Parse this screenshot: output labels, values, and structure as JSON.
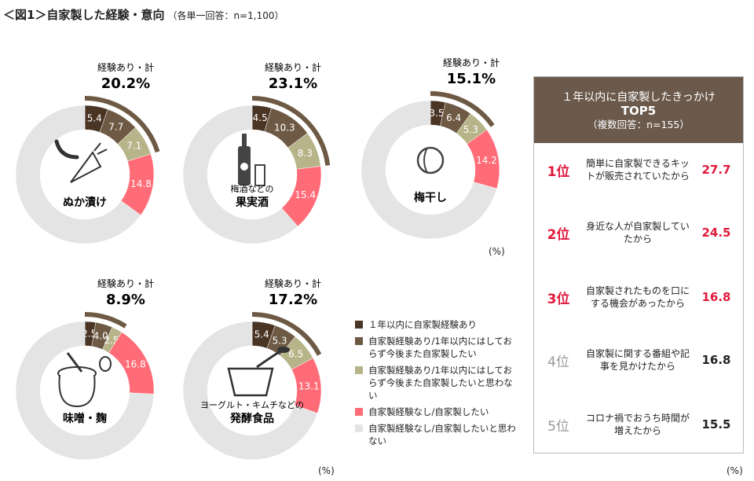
{
  "title": "＜図1＞自家製した経験・意向",
  "subtitle": "（各単一回答：n=1,100）",
  "colors": {
    "c1": "#4a3424",
    "c2": "#6e5a44",
    "c3": "#b8b48a",
    "c4": "#ff6b77",
    "c5": "#e4e4e4",
    "bracket": "#6e5a44",
    "rank_red": "#e1193c",
    "rank_gray": "#999999"
  },
  "chart_data": {
    "type": "pie",
    "variant": "donut",
    "series_labels": [
      "１年以内に自家製経験あり",
      "自家製経験あり/1年以内にはしておらず今後また自家製したい",
      "自家製経験あり/1年以内にはしておらず今後また自家製したいと思わない",
      "自家製経験なし/自家製したい",
      "自家製経験なし/自家製したいと思わない"
    ],
    "total_label": "経験あり・計",
    "donuts": [
      {
        "name": "ぬか漬け",
        "total": "20.2%",
        "values": [
          5.4,
          7.7,
          7.1,
          14.8
        ],
        "icon": "pickle-radish-icon"
      },
      {
        "name_small": "梅酒などの",
        "name": "果実酒",
        "total": "23.1%",
        "values": [
          4.5,
          10.3,
          8.3,
          15.4
        ],
        "icon": "bottle-glass-icon"
      },
      {
        "name": "梅干し",
        "total": "15.1%",
        "values": [
          3.5,
          6.4,
          5.3,
          14.2
        ],
        "icon": "umeboshi-icon"
      },
      {
        "name": "味噌・麹",
        "total": "8.9%",
        "values": [
          2.5,
          4.0,
          2.5,
          16.8
        ],
        "icon": "miso-pot-icon"
      },
      {
        "name_small": "ヨーグルト・キムチなどの",
        "name": "発酵食品",
        "total": "17.2%",
        "values": [
          5.4,
          5.3,
          6.5,
          13.1
        ],
        "icon": "bowl-spoon-icon"
      }
    ]
  },
  "unit": "(%)",
  "panel": {
    "title": "１年以内に自家製したきっかけ",
    "title2": "TOP5",
    "title3": "（複数回答：n=155）",
    "items": [
      {
        "rank": "1位",
        "text": "簡単に自家製できるキットが販売されていたから",
        "value": "27.7"
      },
      {
        "rank": "2位",
        "text": "身近な人が自家製していたから",
        "value": "24.5"
      },
      {
        "rank": "3位",
        "text": "自家製されたものを口にする機会があったから",
        "value": "16.8"
      },
      {
        "rank": "4位",
        "text": "自家製に関する番組や記事を見かけたから",
        "value": "16.8"
      },
      {
        "rank": "5位",
        "text": "コロナ禍でおうち時間が増えたから",
        "value": "15.5"
      }
    ]
  }
}
